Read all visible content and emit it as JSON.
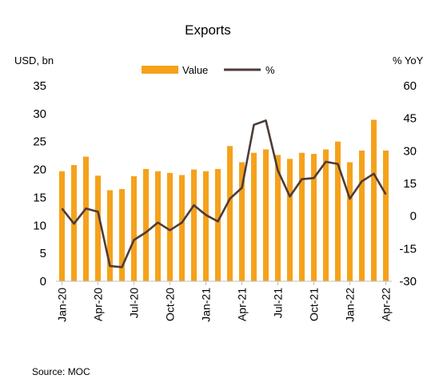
{
  "chart_data": {
    "type": "bar",
    "title": "Exports",
    "left_axis_label": "USD, bn",
    "right_axis_label": "% YoY",
    "source": "Source:  MOC",
    "legend": {
      "placement": "top-center",
      "bar_label": "Value",
      "line_label": "%"
    },
    "colors": {
      "bar": "#F5A21B",
      "line": "#4D3B38"
    },
    "grid": false,
    "y_left": {
      "min": 0,
      "max": 35,
      "ticks": [
        0,
        5,
        10,
        15,
        20,
        25,
        30,
        35
      ]
    },
    "y_right": {
      "min": -30,
      "max": 60,
      "ticks": [
        -30,
        -15,
        0,
        15,
        30,
        45,
        60
      ]
    },
    "x_tick_labels": [
      "Jan-20",
      "Apr-20",
      "Jul-20",
      "Oct-20",
      "Jan-21",
      "Apr-21",
      "Jul-21",
      "Oct-21",
      "Jan-22",
      "Apr-22"
    ],
    "categories": [
      "Jan-20",
      "Feb-20",
      "Mar-20",
      "Apr-20",
      "May-20",
      "Jun-20",
      "Jul-20",
      "Aug-20",
      "Sep-20",
      "Oct-20",
      "Nov-20",
      "Dec-20",
      "Jan-21",
      "Feb-21",
      "Mar-21",
      "Apr-21",
      "May-21",
      "Jun-21",
      "Jul-21",
      "Aug-21",
      "Sep-21",
      "Oct-21",
      "Nov-21",
      "Dec-21",
      "Jan-22",
      "Feb-22",
      "Mar-22",
      "Apr-22"
    ],
    "series": [
      {
        "name": "Value",
        "type": "bar",
        "axis": "left",
        "values": [
          19.7,
          20.8,
          22.3,
          18.9,
          16.3,
          16.5,
          18.8,
          20.1,
          19.7,
          19.4,
          19.0,
          20.0,
          19.7,
          20.1,
          24.2,
          21.3,
          23.0,
          23.6,
          22.6,
          21.9,
          23.0,
          22.8,
          23.6,
          25.0,
          21.3,
          23.4,
          28.9,
          23.4
        ]
      },
      {
        "name": "%",
        "type": "line",
        "axis": "right",
        "values": [
          3.5,
          -3.5,
          3.5,
          2.0,
          -23.0,
          -23.5,
          -11.0,
          -7.5,
          -3.0,
          -6.5,
          -3.0,
          5.0,
          0.5,
          -2.5,
          8.0,
          13.0,
          42.0,
          44.0,
          21.0,
          9.0,
          17.0,
          17.5,
          25.0,
          24.0,
          8.0,
          16.0,
          19.5,
          10.0
        ]
      }
    ]
  }
}
